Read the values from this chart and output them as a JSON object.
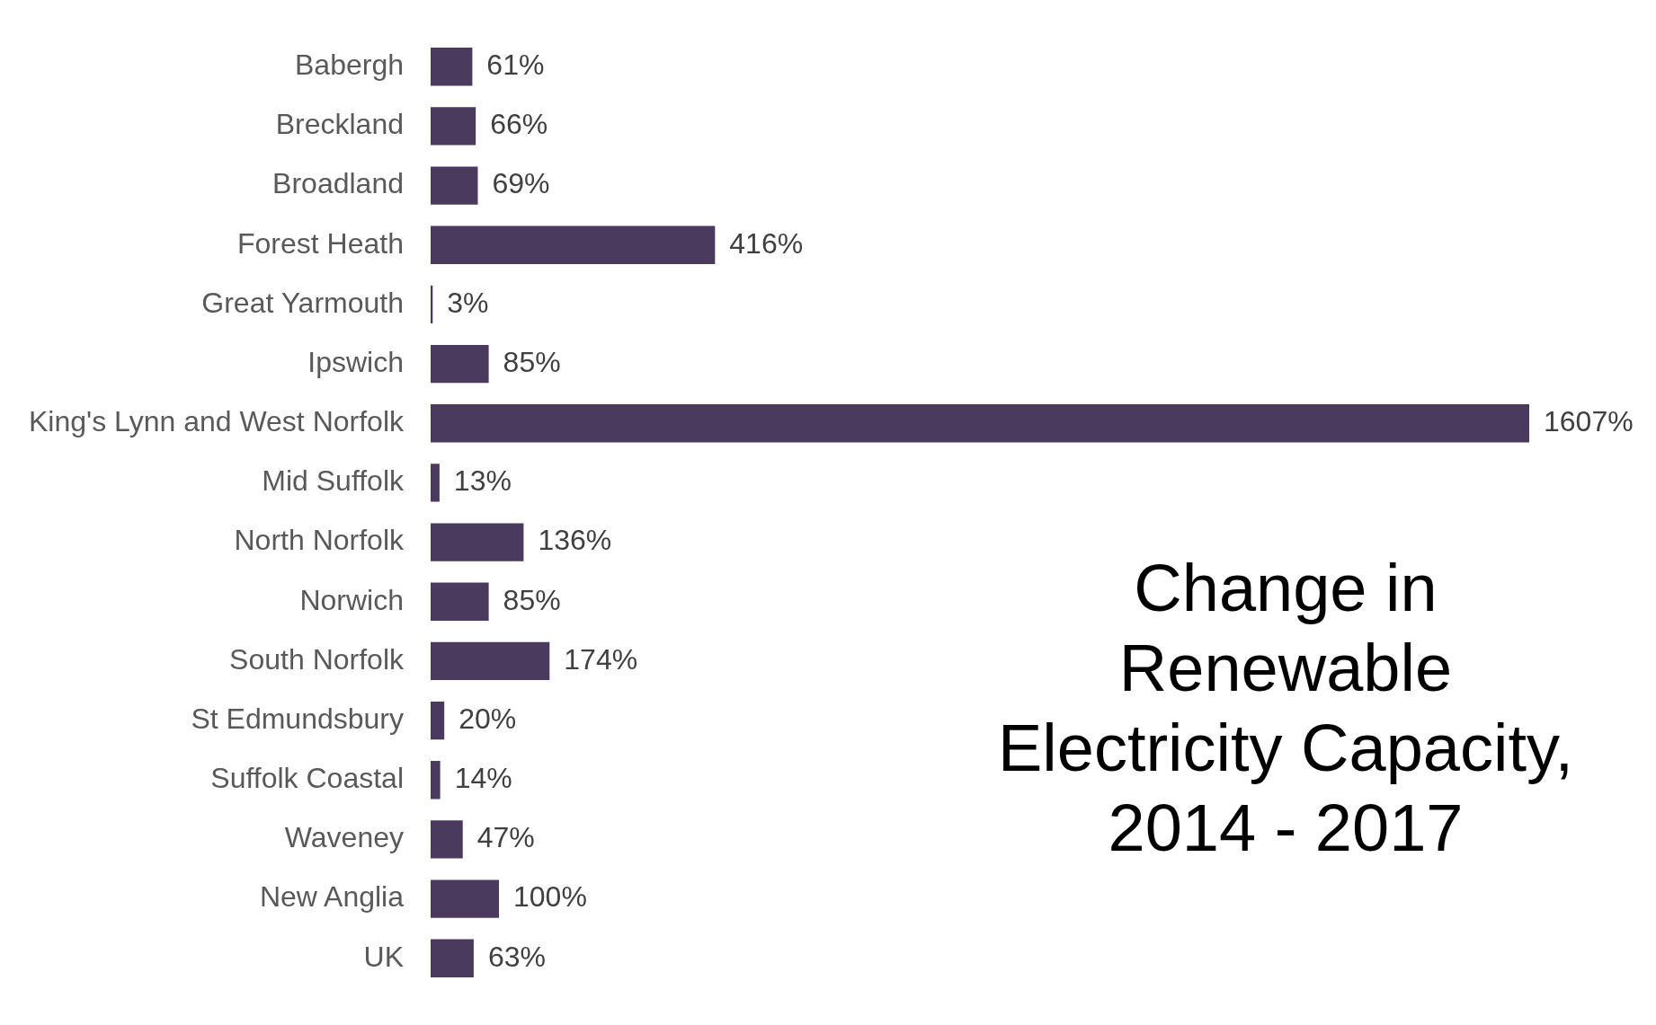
{
  "chart_data": {
    "type": "bar",
    "orientation": "horizontal",
    "title": "Change in Renewable Electricity Capacity, 2014 - 2017",
    "categories": [
      "Babergh",
      "Breckland",
      "Broadland",
      "Forest Heath",
      "Great Yarmouth",
      "Ipswich",
      "King's Lynn and West Norfolk",
      "Mid Suffolk",
      "North Norfolk",
      "Norwich",
      "South Norfolk",
      "St Edmundsbury",
      "Suffolk Coastal",
      "Waveney",
      "New Anglia",
      "UK"
    ],
    "values": [
      61,
      66,
      69,
      416,
      3,
      85,
      1607,
      13,
      136,
      85,
      174,
      20,
      14,
      47,
      100,
      63
    ],
    "value_labels": [
      "61%",
      "66%",
      "69%",
      "416%",
      "3%",
      "85%",
      "1607%",
      "13%",
      "136%",
      "85%",
      "174%",
      "20%",
      "14%",
      "47%",
      "100%",
      "63%"
    ],
    "color": "#4a3a5e"
  }
}
